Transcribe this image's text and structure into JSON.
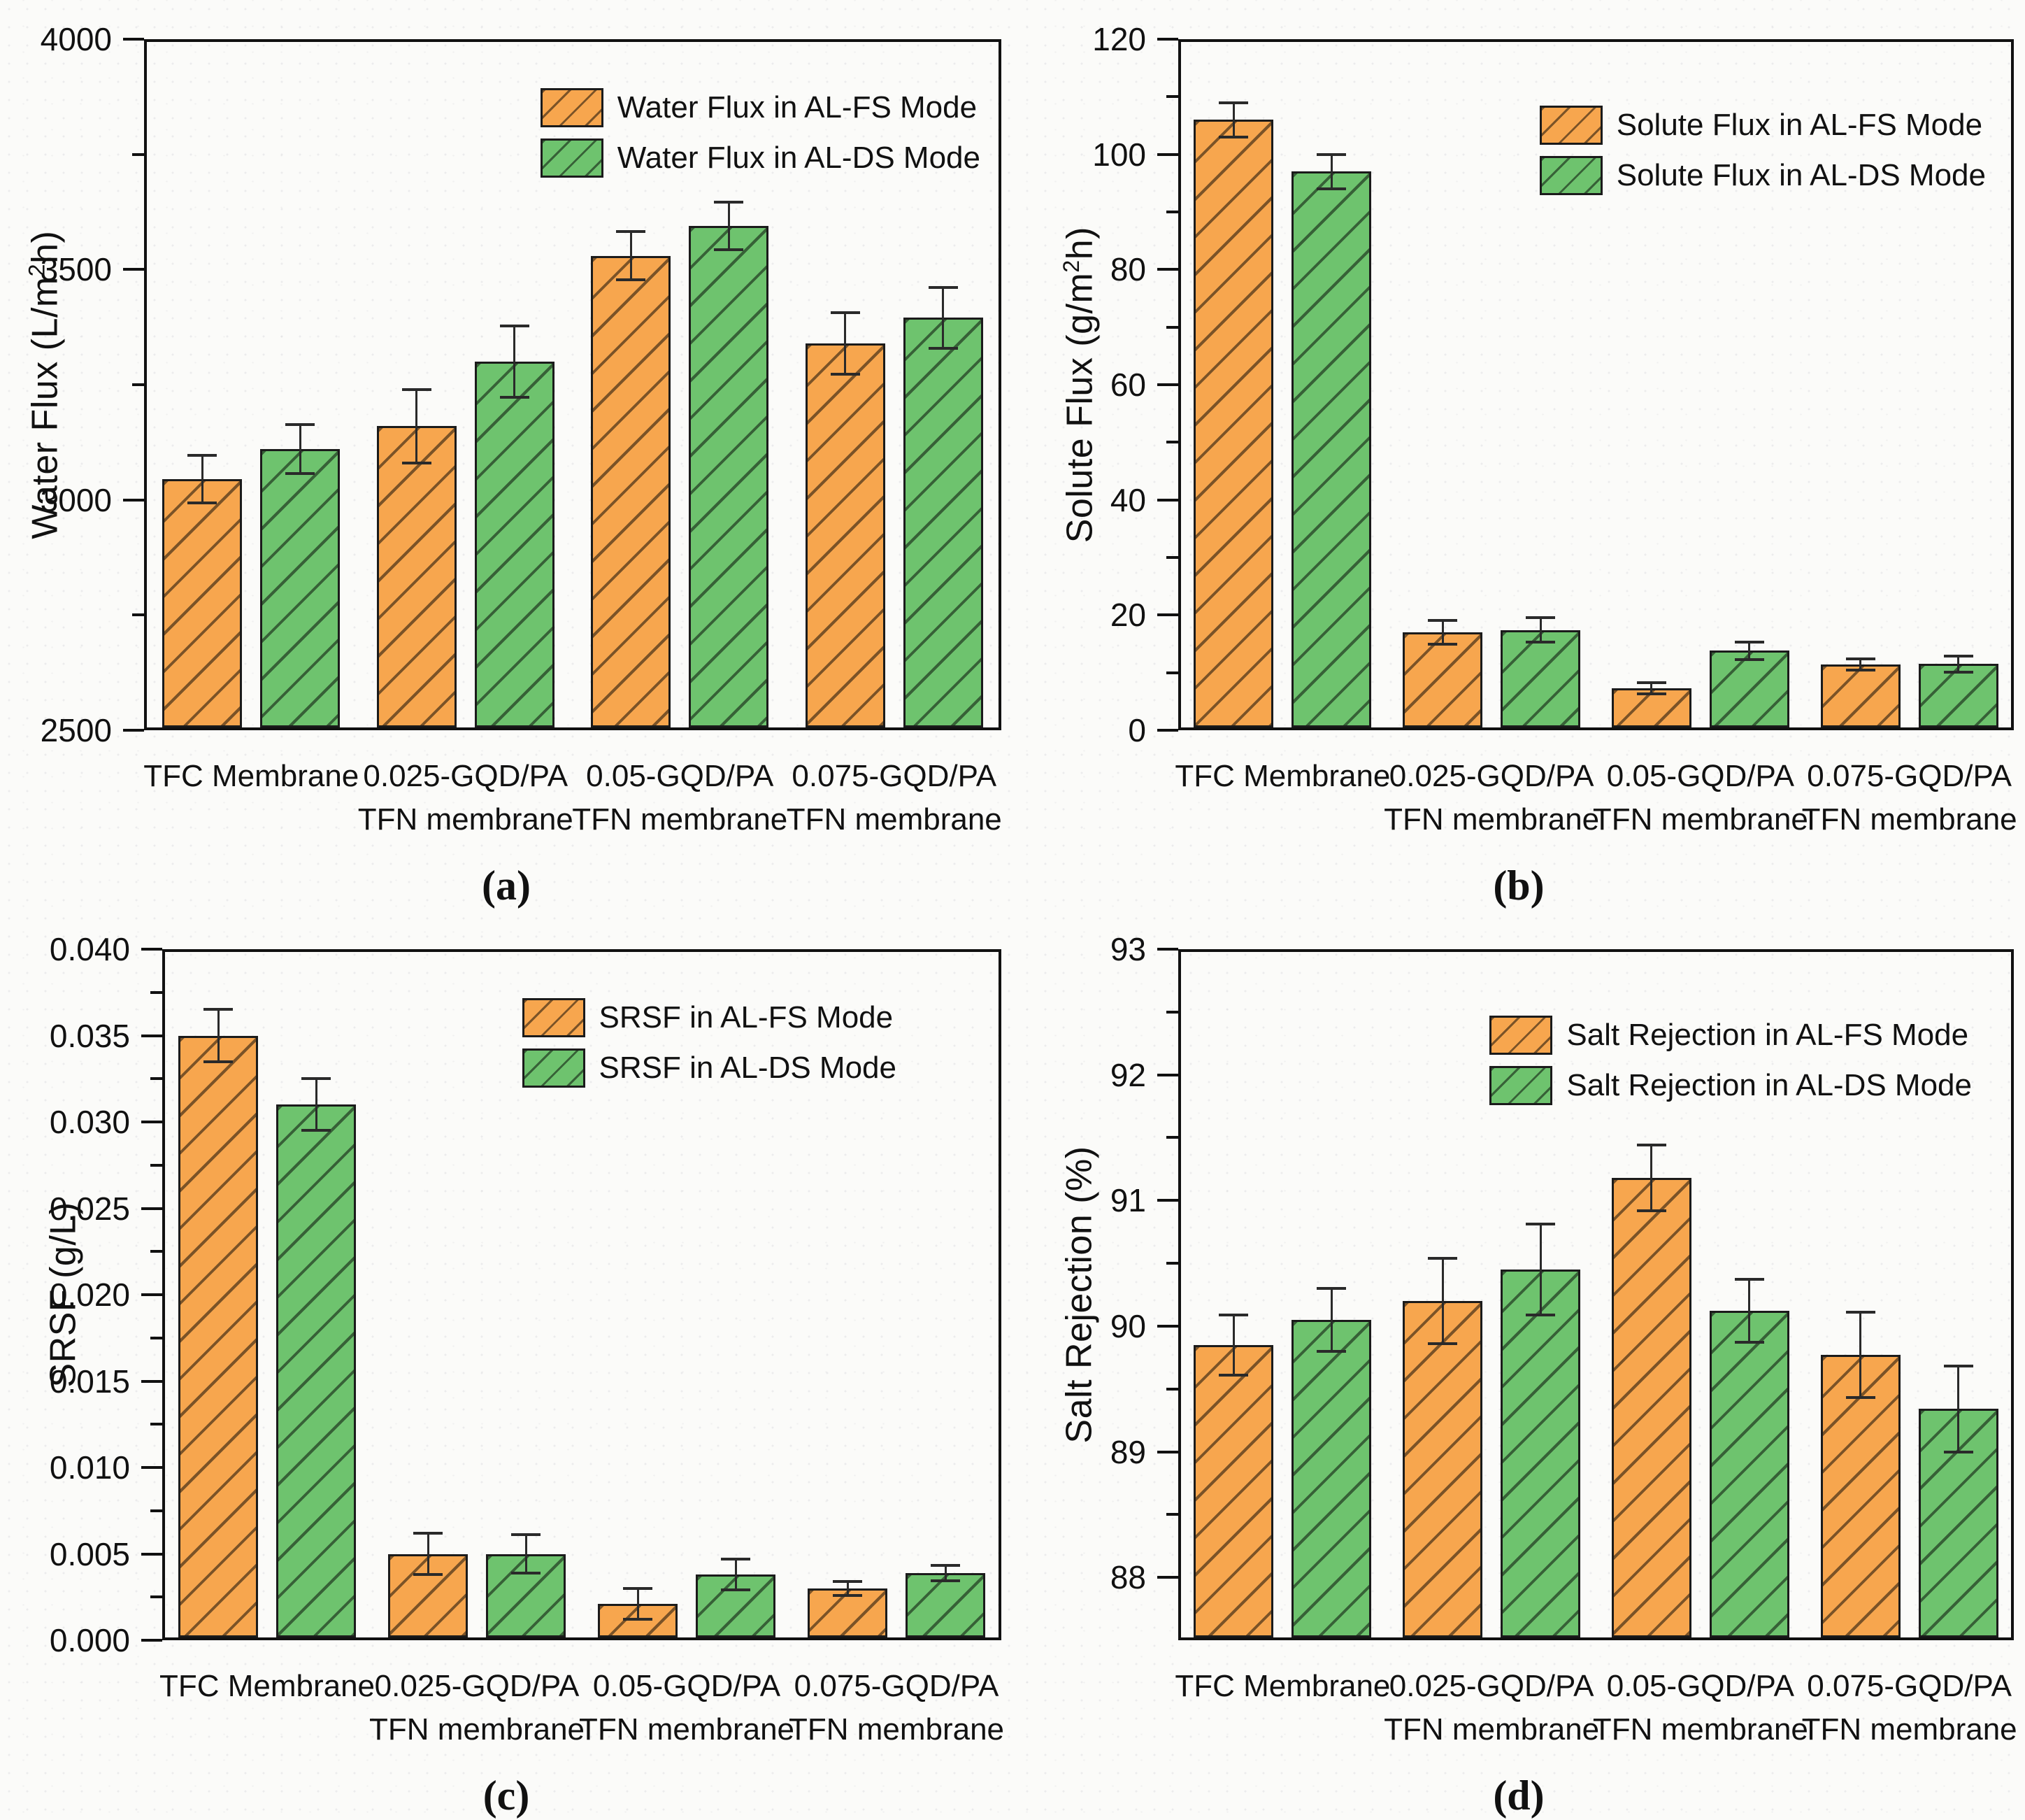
{
  "figure_type": "four-panel membrane performance bar charts",
  "modes": {
    "fs": "AL-FS Mode",
    "ds": "AL-DS Mode"
  },
  "colors": {
    "al_fs_fill": "#F7A64E",
    "al_ds_fill": "#6EC36E",
    "bar_outline": "#1b1b1b",
    "axis": "#111111"
  },
  "chart_data": [
    {
      "id": "a",
      "type": "bar",
      "caption": "(a)",
      "ylabel": "Water Flux (L/m²h)",
      "ylim": [
        2500,
        4000
      ],
      "ytick_labels": [
        "2500",
        "3000",
        "3500",
        "4000"
      ],
      "yminor_step": 250,
      "grid": false,
      "legend_position": "top-right",
      "categories": [
        [
          "TFC Membrane",
          ""
        ],
        [
          "0.025-GQD/PA",
          "TFN membrane"
        ],
        [
          "0.05-GQD/PA",
          "TFN membrane"
        ],
        [
          "0.075-GQD/PA",
          "TFN membrane"
        ]
      ],
      "series": [
        {
          "name": "Water Flux in AL-FS Mode",
          "color": "#F7A64E",
          "hatch": "/",
          "values": [
            3045,
            3160,
            3530,
            3340
          ],
          "errors": [
            52,
            80,
            52,
            67
          ]
        },
        {
          "name": "Water Flux in AL-DS Mode",
          "color": "#6EC36E",
          "hatch": "/",
          "values": [
            3110,
            3300,
            3595,
            3395
          ],
          "errors": [
            53,
            77,
            52,
            66
          ]
        }
      ]
    },
    {
      "id": "b",
      "type": "bar",
      "caption": "(b)",
      "ylabel": "Solute Flux (g/m²h)",
      "ylim": [
        0,
        120
      ],
      "ytick_labels": [
        "0",
        "20",
        "40",
        "60",
        "80",
        "100",
        "120"
      ],
      "yminor_step": 10,
      "grid": false,
      "legend_position": "top-right",
      "categories": [
        [
          "TFC Membrane",
          ""
        ],
        [
          "0.025-GQD/PA",
          "TFN membrane"
        ],
        [
          "0.05-GQD/PA",
          "TFN membrane"
        ],
        [
          "0.075-GQD/PA",
          "TFN membrane"
        ]
      ],
      "series": [
        {
          "name": "Solute Flux in AL-FS Mode",
          "color": "#F7A64E",
          "hatch": "/",
          "values": [
            106,
            17,
            7.3,
            11.4
          ],
          "errors": [
            3,
            2.1,
            1,
            1
          ]
        },
        {
          "name": "Solute Flux in AL-DS Mode",
          "color": "#6EC36E",
          "hatch": "/",
          "values": [
            97,
            17.4,
            13.8,
            11.5
          ],
          "errors": [
            3,
            2.1,
            1.5,
            1.4
          ]
        }
      ]
    },
    {
      "id": "c",
      "type": "bar",
      "caption": "(c)",
      "ylabel": "SRSF (g/L)",
      "ylim": [
        0,
        0.04
      ],
      "ytick_labels": [
        "0.000",
        "0.005",
        "0.010",
        "0.015",
        "0.020",
        "0.025",
        "0.030",
        "0.035",
        "0.040"
      ],
      "yminor_step": 0.0025,
      "grid": false,
      "legend_position": "top-right",
      "categories": [
        [
          "TFC Membrane",
          ""
        ],
        [
          "0.025-GQD/PA",
          "TFN membrane"
        ],
        [
          "0.05-GQD/PA",
          "TFN membrane"
        ],
        [
          "0.075-GQD/PA",
          "TFN membrane"
        ]
      ],
      "series": [
        {
          "name": "SRSF in AL-FS Mode",
          "color": "#F7A64E",
          "hatch": "/",
          "values": [
            0.035,
            0.005,
            0.0021,
            0.003
          ],
          "errors": [
            0.0015,
            0.0012,
            0.0009,
            0.0004
          ]
        },
        {
          "name": "SRSF in AL-DS Mode",
          "color": "#6EC36E",
          "hatch": "/",
          "values": [
            0.031,
            0.005,
            0.0038,
            0.0039
          ],
          "errors": [
            0.0015,
            0.0011,
            0.0009,
            0.00045
          ]
        }
      ]
    },
    {
      "id": "d",
      "type": "bar",
      "caption": "(d)",
      "ylabel": "Salt Rejection (%)",
      "ylim": [
        87.5,
        93
      ],
      "ytick_labels": [
        "88",
        "89",
        "90",
        "91",
        "92",
        "93"
      ],
      "yminor_step": 0.5,
      "grid": false,
      "legend_position": "top-right",
      "categories": [
        [
          "TFC Membrane",
          ""
        ],
        [
          "0.025-GQD/PA",
          "TFN membrane"
        ],
        [
          "0.05-GQD/PA",
          "TFN membrane"
        ],
        [
          "0.075-GQD/PA",
          "TFN membrane"
        ]
      ],
      "series": [
        {
          "name": "Salt Rejection in AL-FS Mode",
          "color": "#F7A64E",
          "hatch": "/",
          "values": [
            89.85,
            90.2,
            91.18,
            89.77
          ],
          "errors": [
            0.24,
            0.34,
            0.26,
            0.34
          ]
        },
        {
          "name": "Salt Rejection in AL-DS Mode",
          "color": "#6EC36E",
          "hatch": "/",
          "values": [
            90.05,
            90.45,
            90.12,
            89.34
          ],
          "errors": [
            0.25,
            0.36,
            0.25,
            0.34
          ]
        }
      ]
    }
  ]
}
